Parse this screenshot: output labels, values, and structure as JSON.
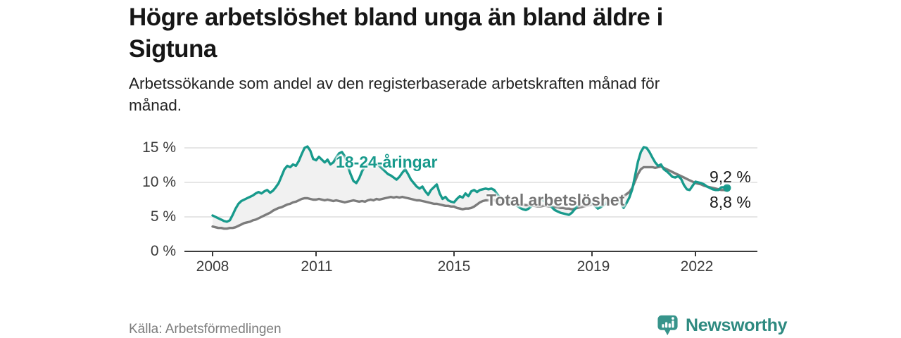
{
  "header": {
    "title": "Högre arbetslöshet bland unga än bland äldre i\nSigtuna",
    "subtitle": "Arbetssökande som andel av den registerbaserade arbetskraften månad för\nmånad."
  },
  "footer": {
    "source": "Källa: Arbetsförmedlingen",
    "brand": "Newsworthy",
    "brand_icon": "speech-bubble-bar-chart",
    "brand_color": "#2e8a80"
  },
  "chart_data": {
    "type": "line",
    "frequency": "monthly",
    "x_start": {
      "year": 2008,
      "month": 1
    },
    "x_end": {
      "year": 2022,
      "month": 12
    },
    "x_tick_labels": [
      "2008",
      "2011",
      "2015",
      "2019",
      "2022"
    ],
    "x_tick_years": [
      2008,
      2011,
      2015,
      2019,
      2022
    ],
    "y_tick_labels": [
      "15 %",
      "10 %",
      "5 %",
      "0 %"
    ],
    "y_ticks": [
      0,
      5,
      10,
      15
    ],
    "ylim": [
      0,
      16
    ],
    "grid": "horizontal",
    "fill_between_color": "#f1f1f1",
    "axis_color": "#3c3c3c",
    "gridline_color": "#dedede",
    "series": [
      {
        "name": "18-24-åringar",
        "color": "#189a8c",
        "end_label": "9,2 %",
        "end_value": 9.2,
        "end_dot": true,
        "values": [
          5.2,
          5.0,
          4.8,
          4.6,
          4.4,
          4.3,
          4.5,
          5.3,
          6.2,
          6.9,
          7.3,
          7.5,
          7.7,
          7.9,
          8.1,
          8.4,
          8.6,
          8.4,
          8.7,
          8.9,
          8.5,
          8.8,
          9.3,
          9.9,
          10.9,
          11.9,
          12.4,
          12.2,
          12.6,
          12.4,
          13.1,
          14.1,
          15.0,
          15.2,
          14.6,
          13.4,
          13.2,
          13.7,
          13.3,
          12.9,
          13.3,
          12.6,
          12.9,
          13.6,
          14.2,
          14.4,
          13.8,
          12.4,
          11.2,
          10.2,
          9.9,
          10.6,
          11.6,
          12.3,
          12.6,
          12.9,
          13.0,
          12.8,
          12.4,
          12.0,
          11.6,
          11.2,
          11.0,
          10.7,
          10.4,
          10.8,
          11.4,
          11.9,
          11.2,
          10.4,
          9.9,
          9.4,
          9.1,
          9.4,
          8.7,
          8.2,
          8.9,
          9.3,
          9.7,
          8.4,
          7.6,
          7.9,
          7.4,
          7.2,
          7.1,
          7.6,
          8.0,
          7.8,
          8.4,
          8.0,
          8.7,
          8.9,
          8.6,
          8.9,
          9.0,
          9.1,
          9.0,
          9.1,
          8.9,
          8.3,
          7.8,
          7.4,
          7.8,
          7.4,
          7.0,
          6.8,
          6.6,
          6.3,
          6.1,
          6.0,
          6.2,
          6.6,
          7.1,
          7.4,
          7.6,
          7.4,
          7.1,
          6.8,
          6.4,
          6.0,
          5.8,
          5.6,
          5.5,
          5.4,
          5.3,
          5.6,
          6.1,
          6.6,
          7.0,
          7.2,
          7.3,
          7.2,
          7.0,
          6.6,
          6.2,
          6.4,
          6.7,
          7.0,
          7.4,
          7.6,
          7.5,
          7.3,
          7.0,
          6.3,
          7.0,
          7.8,
          9.0,
          11.0,
          13.0,
          14.4,
          15.1,
          15.0,
          14.4,
          13.6,
          12.9,
          12.4,
          12.6,
          11.9,
          11.6,
          11.2,
          10.8,
          10.7,
          10.9,
          10.5,
          9.6,
          9.0,
          8.9,
          9.5,
          10.1,
          10.0,
          9.9,
          9.7,
          9.4,
          9.2,
          9.0,
          8.9,
          8.9,
          9.3,
          9.3,
          9.2
        ]
      },
      {
        "name": "Total arbetslöshet",
        "color": "#7c7c7c",
        "end_label": "8,8 %",
        "end_value": 8.8,
        "end_dot": false,
        "values": [
          3.6,
          3.5,
          3.4,
          3.4,
          3.3,
          3.3,
          3.4,
          3.4,
          3.5,
          3.7,
          3.9,
          4.1,
          4.2,
          4.3,
          4.5,
          4.6,
          4.8,
          5.0,
          5.2,
          5.4,
          5.6,
          5.9,
          6.1,
          6.3,
          6.4,
          6.6,
          6.8,
          6.9,
          7.1,
          7.2,
          7.4,
          7.6,
          7.7,
          7.7,
          7.6,
          7.5,
          7.5,
          7.6,
          7.5,
          7.4,
          7.5,
          7.4,
          7.3,
          7.4,
          7.3,
          7.2,
          7.1,
          7.2,
          7.3,
          7.4,
          7.3,
          7.2,
          7.3,
          7.2,
          7.4,
          7.5,
          7.4,
          7.6,
          7.5,
          7.6,
          7.7,
          7.8,
          7.9,
          7.8,
          7.9,
          7.8,
          7.9,
          7.8,
          7.7,
          7.6,
          7.5,
          7.4,
          7.4,
          7.3,
          7.2,
          7.1,
          7.0,
          6.9,
          6.9,
          6.8,
          6.7,
          6.6,
          6.6,
          6.5,
          6.5,
          6.3,
          6.2,
          6.1,
          6.2,
          6.2,
          6.3,
          6.5,
          6.8,
          7.1,
          7.3,
          7.4,
          7.4,
          7.5,
          7.4,
          7.3,
          7.2,
          7.1,
          7.1,
          7.0,
          7.0,
          6.9,
          6.9,
          6.8,
          6.8,
          6.7,
          6.7,
          6.6,
          6.6,
          6.5,
          6.5,
          6.6,
          6.6,
          6.5,
          6.5,
          6.4,
          6.4,
          6.3,
          6.3,
          6.2,
          6.2,
          6.1,
          6.2,
          6.3,
          6.4,
          6.5,
          6.6,
          6.7,
          6.8,
          6.9,
          7.0,
          7.1,
          7.2,
          7.3,
          7.4,
          7.5,
          7.6,
          7.7,
          7.8,
          8.0,
          8.3,
          8.6,
          9.2,
          10.2,
          11.2,
          11.9,
          12.2,
          12.2,
          12.2,
          12.2,
          12.1,
          12.2,
          12.3,
          12.1,
          11.9,
          11.7,
          11.5,
          11.3,
          11.1,
          10.9,
          10.7,
          10.5,
          10.3,
          10.1,
          9.9,
          9.8,
          9.7,
          9.5,
          9.4,
          9.3,
          9.2,
          9.1,
          9.0,
          8.9,
          8.9,
          8.8
        ]
      }
    ]
  }
}
